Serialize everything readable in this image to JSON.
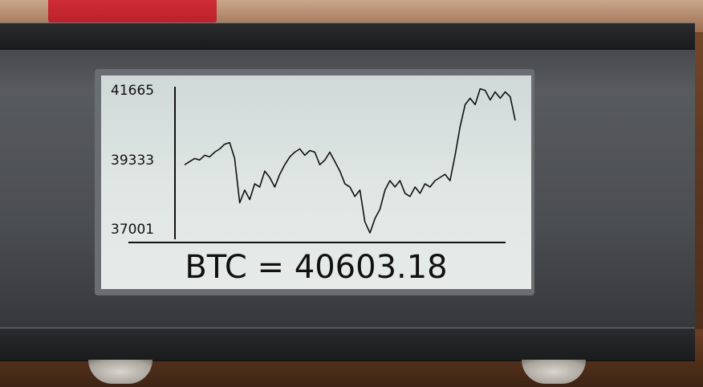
{
  "display": {
    "y_ticks": [
      "41665",
      "39333",
      "37001"
    ],
    "price_label": "BTC = 40603.18"
  },
  "chart_data": {
    "type": "line",
    "title": "",
    "xlabel": "",
    "ylabel": "",
    "ylim": [
      37001,
      41665
    ],
    "y_tick_values": [
      41665,
      39333,
      37001
    ],
    "series": [
      {
        "values": [
          39200,
          39300,
          39400,
          39350,
          39500,
          39450,
          39600,
          39700,
          39850,
          39900,
          39400,
          38000,
          38400,
          38100,
          38600,
          38500,
          39000,
          38800,
          38500,
          38900,
          39200,
          39450,
          39600,
          39700,
          39500,
          39650,
          39600,
          39200,
          39350,
          39600,
          39300,
          39000,
          38600,
          38500,
          38200,
          38400,
          37400,
          37050,
          37500,
          37800,
          38400,
          38700,
          38500,
          38700,
          38300,
          38200,
          38500,
          38300,
          38600,
          38500,
          38700,
          38800,
          38900,
          38700,
          39500,
          40400,
          41100,
          41300,
          41100,
          41600,
          41550,
          41250,
          41500,
          41300,
          41500,
          41350,
          40600
        ]
      }
    ]
  }
}
